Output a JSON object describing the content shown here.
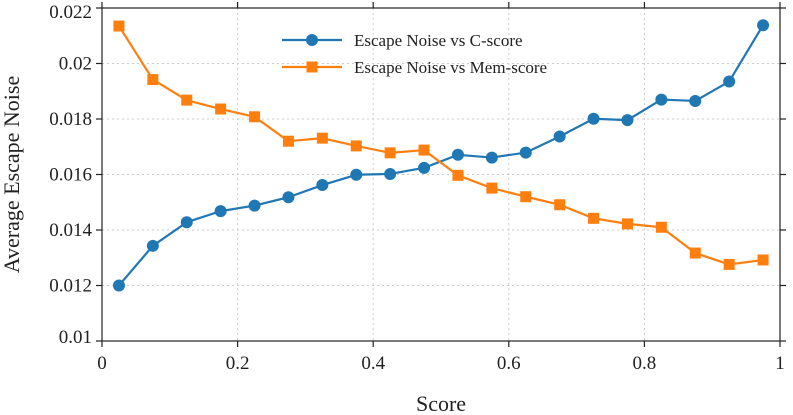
{
  "chart_data": {
    "type": "line",
    "title": "",
    "xlabel": "Score",
    "ylabel": "Average Escape Noise",
    "xlim": [
      0,
      1
    ],
    "ylim": [
      0.01,
      0.022
    ],
    "grid": true,
    "legend_position": "top-center",
    "x_ticks": [
      0,
      0.2,
      0.4,
      0.6,
      0.8,
      1
    ],
    "x_tick_labels": [
      "0",
      "0.2",
      "0.4",
      "0.6",
      "0.8",
      "1"
    ],
    "y_ticks": [
      0.01,
      0.012,
      0.014,
      0.016,
      0.018,
      0.02,
      0.022
    ],
    "y_tick_labels": [
      "0.01",
      "0.012",
      "0.014",
      "0.016",
      "0.018",
      "0.02",
      "0.022"
    ],
    "x": [
      0.025,
      0.075,
      0.125,
      0.175,
      0.225,
      0.275,
      0.325,
      0.375,
      0.425,
      0.475,
      0.525,
      0.575,
      0.625,
      0.675,
      0.725,
      0.775,
      0.825,
      0.875,
      0.925,
      0.975
    ],
    "series": [
      {
        "name": "Escape Noise vs C-score",
        "color": "#1f77b4",
        "marker": "circle",
        "values": [
          0.012,
          0.01343,
          0.01428,
          0.01468,
          0.01488,
          0.01518,
          0.01562,
          0.01599,
          0.01602,
          0.01624,
          0.01671,
          0.01661,
          0.01679,
          0.01737,
          0.01801,
          0.01796,
          0.0187,
          0.01865,
          0.01935,
          0.02138
        ]
      },
      {
        "name": "Escape Noise vs Mem-score",
        "color": "#ff7f0e",
        "marker": "square",
        "values": [
          0.02135,
          0.01942,
          0.01868,
          0.01836,
          0.01808,
          0.0172,
          0.01731,
          0.01703,
          0.01678,
          0.01688,
          0.01597,
          0.01551,
          0.0152,
          0.01491,
          0.01442,
          0.01422,
          0.0141,
          0.01317,
          0.01276,
          0.01292
        ]
      }
    ]
  }
}
